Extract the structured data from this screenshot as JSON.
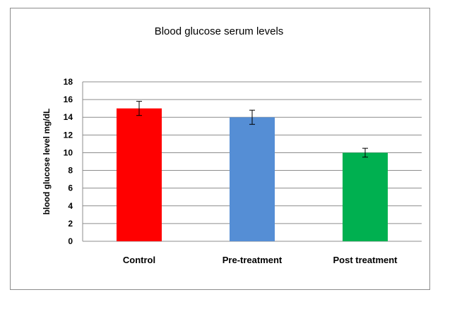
{
  "chart_data": {
    "type": "bar",
    "title": "Blood glucose serum levels",
    "xlabel": "",
    "ylabel": "blood glucose level mg/dL",
    "categories": [
      "Control",
      "Pre-treatment",
      "Post treatment"
    ],
    "values": [
      15,
      14,
      10
    ],
    "error": [
      0.8,
      0.8,
      0.5
    ],
    "colors": [
      "#ff0000",
      "#558ed5",
      "#00b050"
    ],
    "ylim": [
      0,
      18
    ],
    "yticks": [
      "0",
      "2",
      "4",
      "6",
      "8",
      "10",
      "12",
      "14",
      "16",
      "18"
    ],
    "grid": true,
    "legend": "none"
  }
}
